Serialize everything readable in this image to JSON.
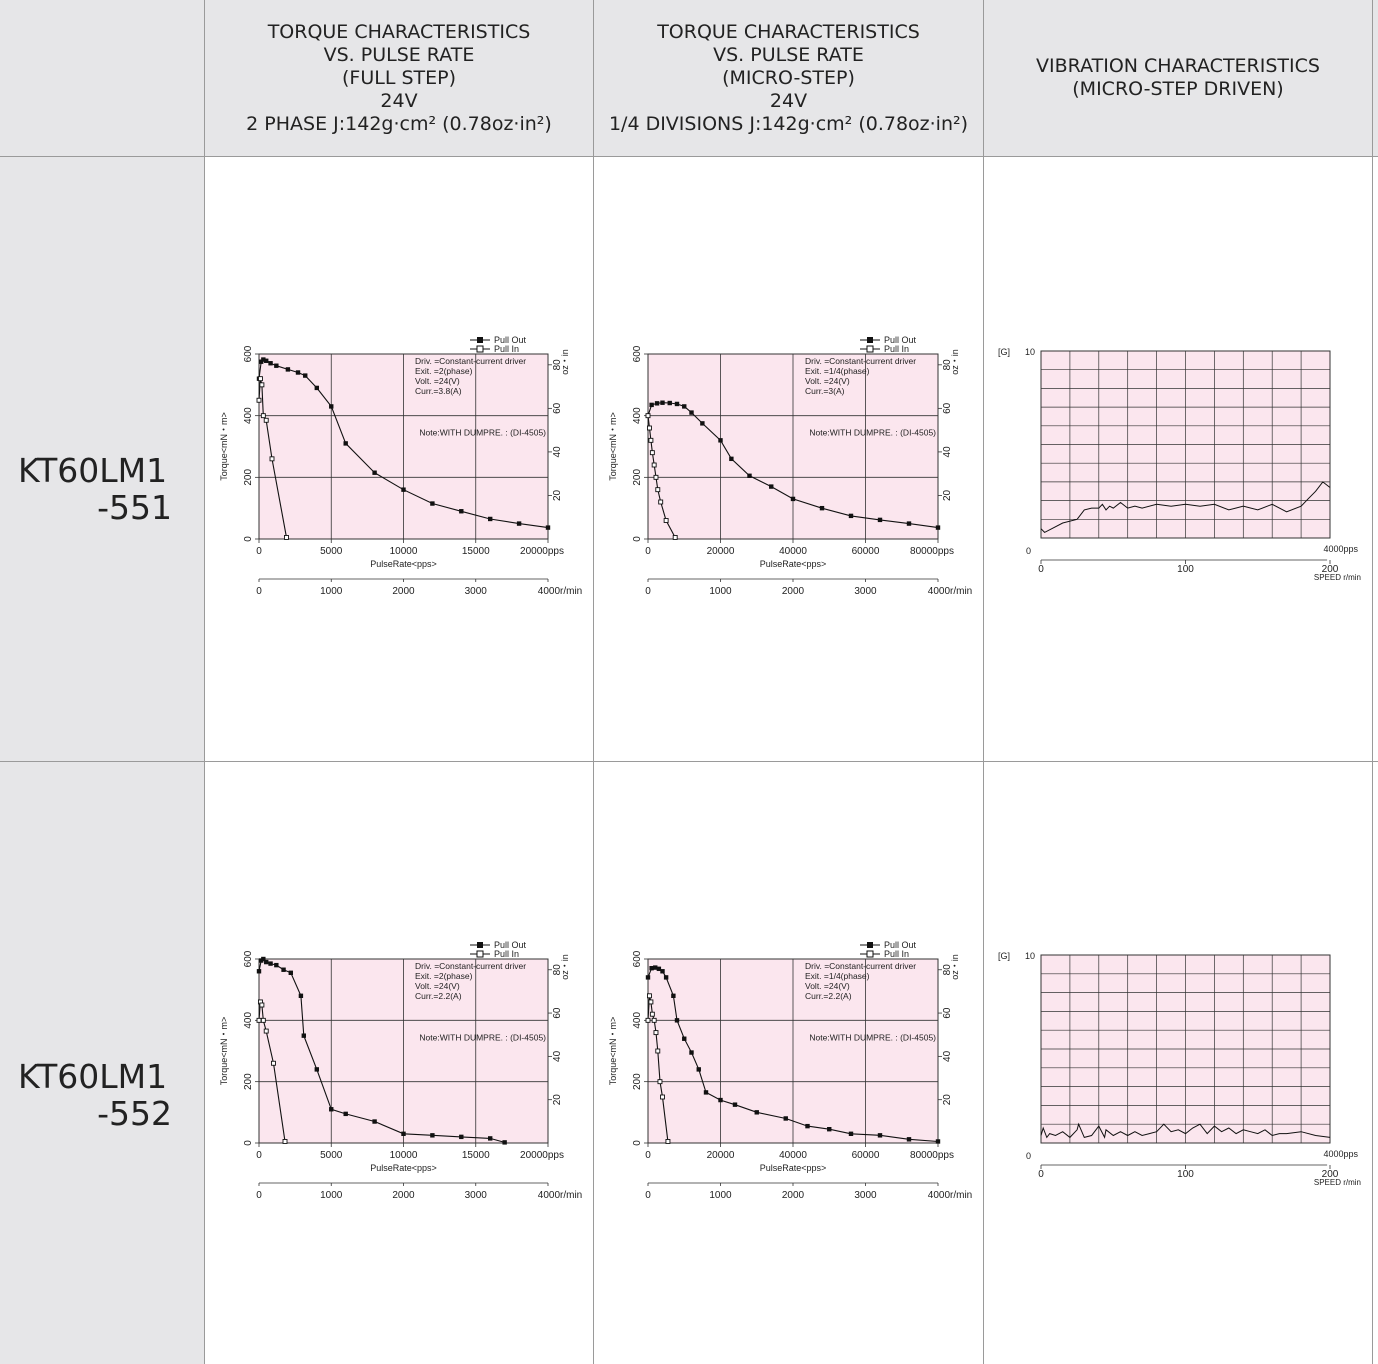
{
  "header": {
    "col1": [
      "TORQUE CHARACTERISTICS",
      "VS. PULSE RATE",
      "(FULL STEP)",
      "24V",
      "2 PHASE J:142g·cm² (0.78oz·in²)"
    ],
    "col2": [
      "TORQUE CHARACTERISTICS",
      "VS. PULSE RATE",
      "(MICRO-STEP)",
      "24V",
      "1/4 DIVISIONS J:142g·cm² (0.78oz·in²)"
    ],
    "col3": [
      "VIBRATION CHARACTERISTICS",
      "(MICRO-STEP DRIVEN)"
    ]
  },
  "models": [
    {
      "line1": "KT60LM1",
      "line2": "-551"
    },
    {
      "line1": "KT60LM1",
      "line2": "-552"
    }
  ],
  "colors": {
    "plot_bg": "#fbe6ee",
    "grid": "#333333",
    "line": "#111111",
    "border": "#9a9a9a",
    "header_bg": "#e6e6e8"
  },
  "chart_data": [
    {
      "id": "r1c1",
      "type": "line",
      "title": "",
      "xlabel": "PulseRate<pps>",
      "ylabel": "Torque<mN・m>",
      "y2label": "oz・in",
      "xlim": [
        0,
        20000
      ],
      "ylim": [
        0,
        600
      ],
      "x_ticks": [
        0,
        5000,
        10000,
        15000,
        20000
      ],
      "x_tick_labels": [
        "0",
        "5000",
        "10000",
        "15000",
        "20000pps"
      ],
      "y_ticks": [
        0,
        200,
        400,
        600
      ],
      "y2_ticks": [
        20,
        40,
        60,
        80
      ],
      "rpm_ticks": [
        "0",
        "1000",
        "2000",
        "3000",
        "4000r/min"
      ],
      "legend": [
        "Pull Out",
        "Pull In"
      ],
      "notes": [
        "Driv. =Constant-current driver",
        "Exit. =2(phase)",
        "Volt. =24(V)",
        "Curr.=3.8(A)"
      ],
      "note2": "Note:WITH DUMPRE. : (DI-4505)",
      "series": [
        {
          "name": "Pull Out",
          "marker": "filled",
          "x": [
            0,
            150,
            300,
            500,
            800,
            1200,
            2000,
            2700,
            3200,
            4000,
            5000,
            6000,
            8000,
            10000,
            12000,
            14000,
            16000,
            18000,
            20000
          ],
          "y": [
            520,
            575,
            582,
            578,
            570,
            562,
            550,
            540,
            530,
            490,
            430,
            310,
            215,
            160,
            115,
            90,
            65,
            50,
            37
          ]
        },
        {
          "name": "Pull In",
          "marker": "hollow",
          "x": [
            0,
            100,
            200,
            300,
            500,
            900,
            1900
          ],
          "y": [
            450,
            520,
            500,
            400,
            385,
            260,
            5
          ]
        }
      ]
    },
    {
      "id": "r1c2",
      "type": "line",
      "title": "",
      "xlabel": "PulseRate<pps>",
      "ylabel": "Torque<mN・m>",
      "y2label": "oz・in",
      "xlim": [
        0,
        80000
      ],
      "ylim": [
        0,
        600
      ],
      "x_ticks": [
        0,
        20000,
        40000,
        60000,
        80000
      ],
      "x_tick_labels": [
        "0",
        "20000",
        "40000",
        "60000",
        "80000pps"
      ],
      "y_ticks": [
        0,
        200,
        400,
        600
      ],
      "y2_ticks": [
        20,
        40,
        60,
        80
      ],
      "rpm_ticks": [
        "0",
        "1000",
        "2000",
        "3000",
        "4000r/min"
      ],
      "legend": [
        "Pull Out",
        "Pull In"
      ],
      "notes": [
        "Driv. =Constant-current driver",
        "Exit. =1/4(phase)",
        "Volt. =24(V)",
        "Curr.=3(A)"
      ],
      "note2": "Note:WITH DUMPRE. : (DI-4505)",
      "series": [
        {
          "name": "Pull Out",
          "marker": "filled",
          "x": [
            0,
            1000,
            2500,
            4000,
            6000,
            8000,
            10000,
            12000,
            15000,
            20000,
            23000,
            28000,
            34000,
            40000,
            48000,
            56000,
            64000,
            72000,
            80000
          ],
          "y": [
            400,
            435,
            440,
            442,
            441,
            438,
            430,
            410,
            375,
            320,
            260,
            205,
            170,
            130,
            100,
            75,
            62,
            50,
            37
          ]
        },
        {
          "name": "Pull In",
          "marker": "hollow",
          "x": [
            0,
            400,
            800,
            1200,
            1700,
            2200,
            2700,
            3500,
            5000,
            7500
          ],
          "y": [
            400,
            360,
            320,
            280,
            240,
            200,
            160,
            120,
            60,
            5
          ]
        }
      ]
    },
    {
      "id": "r1c3",
      "type": "line",
      "title": "",
      "ylabel": "[G]",
      "xlim": [
        0,
        4000
      ],
      "ylim": [
        0,
        10
      ],
      "x_tick_labels": [
        "0",
        "4000pps"
      ],
      "y_tick_labels": [
        "0",
        "10"
      ],
      "speed_ticks": [
        "0",
        "100",
        "200"
      ],
      "speed_label": "SPEED  r/min",
      "series": [
        {
          "name": "",
          "x": [
            0,
            50,
            150,
            300,
            500,
            600,
            700,
            800,
            850,
            900,
            950,
            1000,
            1100,
            1200,
            1300,
            1400,
            1600,
            1800,
            2000,
            2200,
            2400,
            2600,
            2800,
            3000,
            3200,
            3400,
            3600,
            3700,
            3800,
            3900,
            4000
          ],
          "y": [
            0.5,
            0.3,
            0.5,
            0.8,
            1.0,
            1.5,
            1.6,
            1.6,
            1.8,
            1.5,
            1.7,
            1.6,
            1.9,
            1.6,
            1.7,
            1.6,
            1.8,
            1.7,
            1.8,
            1.7,
            1.8,
            1.5,
            1.7,
            1.5,
            1.8,
            1.4,
            1.7,
            2.1,
            2.5,
            3.0,
            2.7
          ]
        }
      ]
    },
    {
      "id": "r2c1",
      "type": "line",
      "title": "",
      "xlabel": "PulseRate<pps>",
      "ylabel": "Torque<mN・m>",
      "y2label": "oz・in",
      "xlim": [
        0,
        20000
      ],
      "ylim": [
        0,
        600
      ],
      "x_ticks": [
        0,
        5000,
        10000,
        15000,
        20000
      ],
      "x_tick_labels": [
        "0",
        "5000",
        "10000",
        "15000",
        "20000pps"
      ],
      "y_ticks": [
        0,
        200,
        400,
        600
      ],
      "y2_ticks": [
        20,
        40,
        60,
        80
      ],
      "rpm_ticks": [
        "0",
        "1000",
        "2000",
        "3000",
        "4000r/min"
      ],
      "legend": [
        "Pull Out",
        "Pull In"
      ],
      "notes": [
        "Driv. =Constant-current driver",
        "Exit. =2(phase)",
        "Volt. =24(V)",
        "Curr.=2.2(A)"
      ],
      "note2": "Note:WITH DUMPRE. : (DI-4505)",
      "series": [
        {
          "name": "Pull Out",
          "marker": "filled",
          "x": [
            0,
            150,
            300,
            500,
            800,
            1200,
            1700,
            2200,
            2900,
            3100,
            4000,
            5000,
            6000,
            8000,
            10000,
            12000,
            14000,
            16000,
            17000
          ],
          "y": [
            560,
            595,
            600,
            590,
            585,
            580,
            565,
            555,
            480,
            350,
            240,
            110,
            95,
            70,
            30,
            25,
            20,
            15,
            2
          ]
        },
        {
          "name": "Pull In",
          "marker": "hollow",
          "x": [
            0,
            100,
            200,
            300,
            500,
            1000,
            1800
          ],
          "y": [
            400,
            460,
            450,
            400,
            365,
            260,
            5
          ]
        }
      ]
    },
    {
      "id": "r2c2",
      "type": "line",
      "title": "",
      "xlabel": "PulseRate<pps>",
      "ylabel": "Torque<mN・m>",
      "y2label": "oz・in",
      "xlim": [
        0,
        80000
      ],
      "ylim": [
        0,
        600
      ],
      "x_ticks": [
        0,
        20000,
        40000,
        60000,
        80000
      ],
      "x_tick_labels": [
        "0",
        "20000",
        "40000",
        "60000",
        "80000pps"
      ],
      "y_ticks": [
        0,
        200,
        400,
        600
      ],
      "y2_ticks": [
        20,
        40,
        60,
        80
      ],
      "rpm_ticks": [
        "0",
        "1000",
        "2000",
        "3000",
        "4000r/min"
      ],
      "legend": [
        "Pull Out",
        "Pull In"
      ],
      "notes": [
        "Driv. =Constant-current driver",
        "Exit. =1/4(phase)",
        "Volt. =24(V)",
        "Curr.=2.2(A)"
      ],
      "note2": "Note:WITH DUMPRE. : (DI-4505)",
      "series": [
        {
          "name": "Pull Out",
          "marker": "filled",
          "x": [
            0,
            1000,
            2000,
            3000,
            4000,
            5000,
            7000,
            8000,
            10000,
            12000,
            14000,
            16000,
            20000,
            24000,
            30000,
            38000,
            44000,
            50000,
            56000,
            64000,
            72000,
            80000
          ],
          "y": [
            540,
            570,
            572,
            568,
            560,
            540,
            480,
            400,
            340,
            295,
            240,
            165,
            140,
            125,
            100,
            80,
            55,
            45,
            30,
            25,
            12,
            5
          ]
        },
        {
          "name": "Pull In",
          "marker": "hollow",
          "x": [
            0,
            400,
            800,
            1200,
            1700,
            2200,
            2700,
            3300,
            4000,
            5500
          ],
          "y": [
            400,
            480,
            460,
            420,
            400,
            360,
            300,
            200,
            150,
            5
          ]
        }
      ]
    },
    {
      "id": "r2c3",
      "type": "line",
      "title": "",
      "ylabel": "[G]",
      "xlim": [
        0,
        4000
      ],
      "ylim": [
        0,
        10
      ],
      "x_tick_labels": [
        "0",
        "4000pps"
      ],
      "y_tick_labels": [
        "0",
        "10"
      ],
      "speed_ticks": [
        "0",
        "100",
        "200"
      ],
      "speed_label": "SPEED  r/min",
      "series": [
        {
          "name": "",
          "x": [
            0,
            30,
            80,
            120,
            200,
            300,
            400,
            500,
            520,
            600,
            700,
            800,
            880,
            900,
            1000,
            1100,
            1200,
            1300,
            1400,
            1500,
            1600,
            1700,
            1800,
            1900,
            2000,
            2100,
            2200,
            2300,
            2400,
            2500,
            2600,
            2700,
            2800,
            2900,
            3000,
            3100,
            3200,
            3300,
            3400,
            3600,
            3800,
            4000
          ],
          "y": [
            0.4,
            0.8,
            0.3,
            0.5,
            0.4,
            0.6,
            0.3,
            0.7,
            1.0,
            0.3,
            0.4,
            0.9,
            0.3,
            0.7,
            0.4,
            0.6,
            0.4,
            0.6,
            0.4,
            0.5,
            0.6,
            1.0,
            0.6,
            0.7,
            0.5,
            0.8,
            1.0,
            0.5,
            0.9,
            0.6,
            0.8,
            0.5,
            0.7,
            0.6,
            0.5,
            0.7,
            0.4,
            0.5,
            0.5,
            0.6,
            0.4,
            0.3
          ]
        }
      ]
    }
  ]
}
